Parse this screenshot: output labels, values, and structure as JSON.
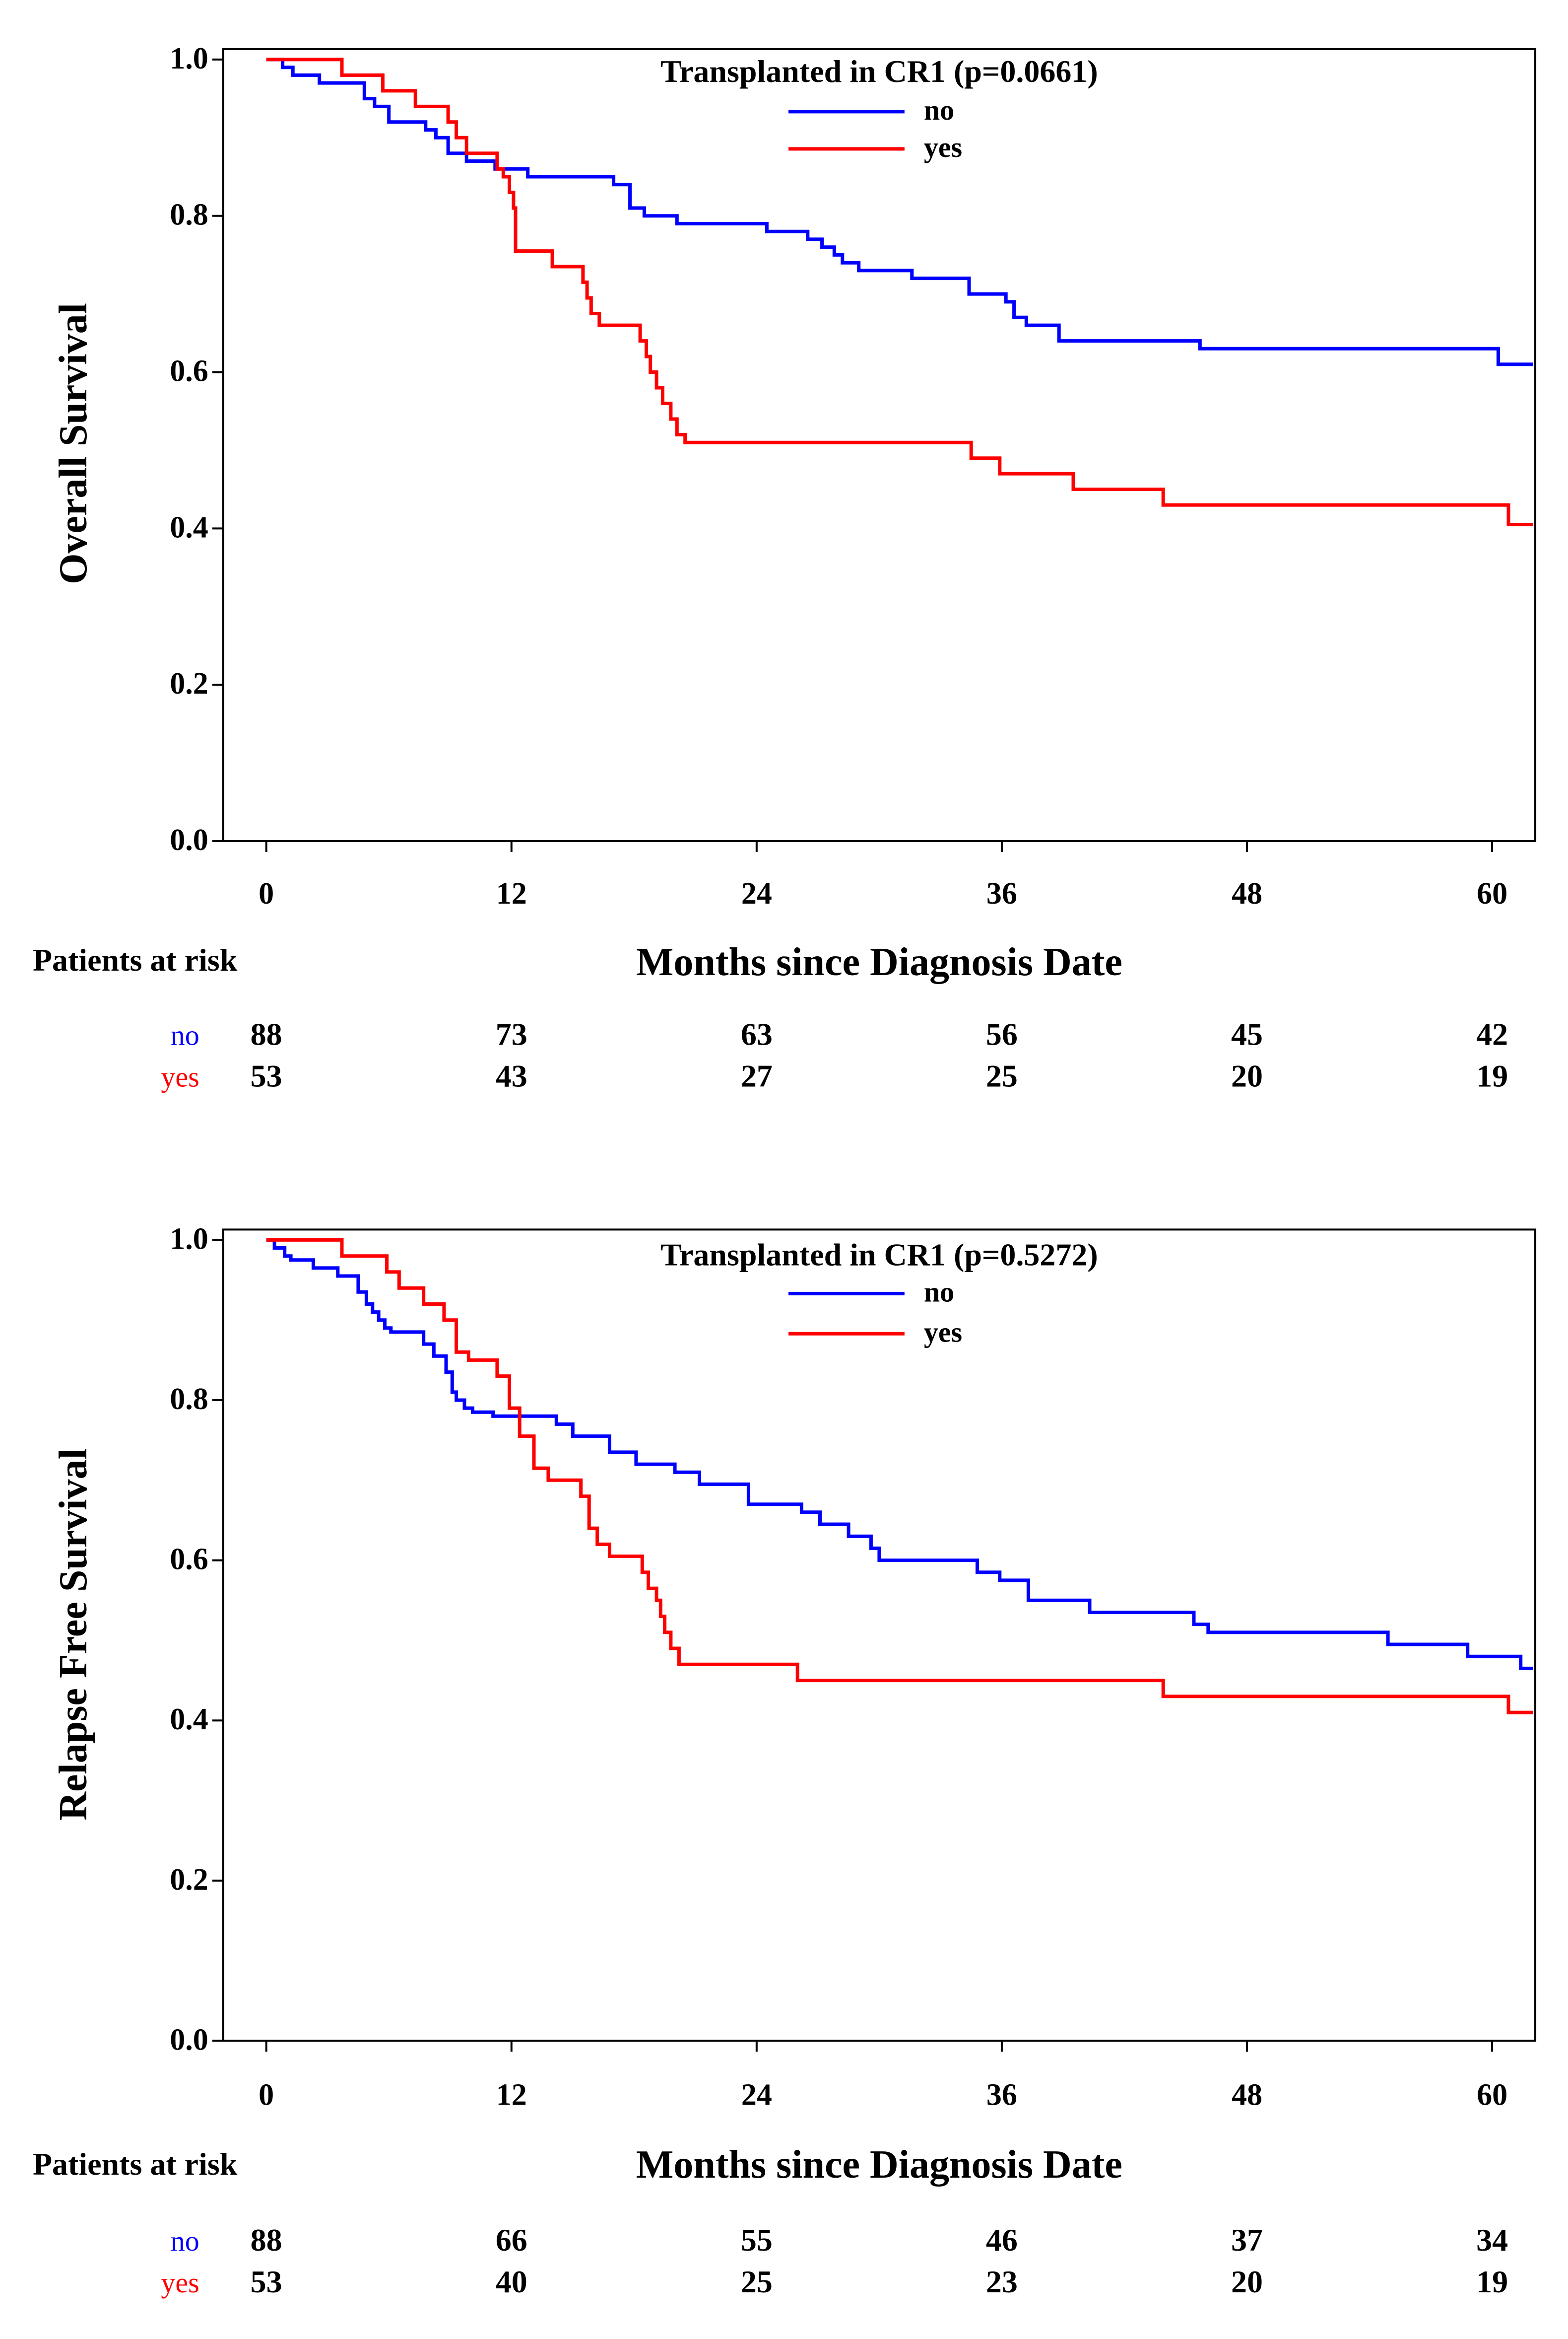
{
  "colors": {
    "no": "#0000ff",
    "yes": "#ff0000",
    "axis": "#000000"
  },
  "chart_data": [
    {
      "type": "line",
      "step": true,
      "title": "Transplanted in CR1  (p=0.0661)",
      "xlabel": "Months since Diagnosis Date",
      "ylabel": "Overall Survival",
      "xlim": [
        -2,
        62
      ],
      "ylim": [
        0,
        1
      ],
      "xticks": [
        0,
        12,
        24,
        36,
        48,
        60
      ],
      "yticks": [
        0.0,
        0.2,
        0.4,
        0.6,
        0.8,
        1.0
      ],
      "ytick_labels": [
        "0.0",
        "0.2",
        "0.4",
        "0.6",
        "0.8",
        "1.0"
      ],
      "legend": {
        "position": "top-center",
        "entries": [
          "no",
          "yes"
        ]
      },
      "series": [
        {
          "name": "no",
          "color": "#0000ff",
          "x": [
            0,
            0.8,
            1.3,
            2.6,
            4.8,
            5.3,
            6.0,
            7.8,
            8.3,
            8.9,
            9.8,
            11.2,
            12.8,
            17.0,
            17.8,
            18.5,
            20.1,
            24.5,
            26.5,
            27.2,
            27.8,
            28.2,
            29.0,
            31.6,
            34.4,
            36.2,
            36.6,
            37.2,
            38.8,
            45.7,
            60.3
          ],
          "y": [
            1.0,
            0.99,
            0.98,
            0.97,
            0.95,
            0.94,
            0.92,
            0.91,
            0.9,
            0.88,
            0.87,
            0.86,
            0.85,
            0.84,
            0.81,
            0.8,
            0.79,
            0.78,
            0.77,
            0.76,
            0.75,
            0.74,
            0.73,
            0.72,
            0.7,
            0.69,
            0.67,
            0.66,
            0.64,
            0.63,
            0.61
          ],
          "x_end": 62
        },
        {
          "name": "yes",
          "color": "#ff0000",
          "x": [
            0,
            3.7,
            5.7,
            7.3,
            8.9,
            9.3,
            9.8,
            11.3,
            11.6,
            11.9,
            12.1,
            12.2,
            14.0,
            15.5,
            15.7,
            15.9,
            16.3,
            18.3,
            18.6,
            18.8,
            19.1,
            19.4,
            19.8,
            20.1,
            20.5,
            34.5,
            35.9,
            39.5,
            43.9,
            60.8
          ],
          "y": [
            1.0,
            0.98,
            0.96,
            0.94,
            0.92,
            0.9,
            0.88,
            0.86,
            0.85,
            0.83,
            0.81,
            0.755,
            0.735,
            0.715,
            0.695,
            0.675,
            0.66,
            0.64,
            0.62,
            0.6,
            0.58,
            0.56,
            0.54,
            0.52,
            0.51,
            0.49,
            0.47,
            0.45,
            0.43,
            0.405
          ],
          "x_end": 62
        }
      ],
      "risk_table": {
        "title": "Patients at risk",
        "times": [
          0,
          12,
          24,
          36,
          48,
          60
        ],
        "rows": [
          {
            "label": "no",
            "counts": [
              88,
              73,
              63,
              56,
              45,
              42
            ]
          },
          {
            "label": "yes",
            "counts": [
              53,
              43,
              27,
              25,
              20,
              19
            ]
          }
        ]
      }
    },
    {
      "type": "line",
      "step": true,
      "title": "Transplanted in CR1  (p=0.5272)",
      "xlabel": "Months since Diagnosis Date",
      "ylabel": "Relapse Free Survival",
      "xlim": [
        -2,
        62
      ],
      "ylim": [
        0,
        1
      ],
      "xticks": [
        0,
        12,
        24,
        36,
        48,
        60
      ],
      "yticks": [
        0.0,
        0.2,
        0.4,
        0.6,
        0.8,
        1.0
      ],
      "ytick_labels": [
        "0.0",
        "0.2",
        "0.4",
        "0.6",
        "0.8",
        "1.0"
      ],
      "legend": {
        "position": "top-center",
        "entries": [
          "no",
          "yes"
        ]
      },
      "series": [
        {
          "name": "no",
          "color": "#0000ff",
          "x": [
            0,
            0.4,
            0.9,
            1.2,
            2.3,
            3.5,
            4.5,
            4.9,
            5.2,
            5.5,
            5.8,
            6.1,
            7.7,
            8.2,
            8.8,
            9.1,
            9.3,
            9.7,
            10.1,
            11.1,
            14.2,
            15.0,
            16.8,
            18.1,
            20.0,
            21.2,
            23.6,
            26.2,
            27.1,
            28.5,
            29.6,
            30.0,
            30.3,
            34.8,
            35.9,
            37.3,
            40.3,
            45.4,
            46.1,
            54.9,
            58.8,
            61.4
          ],
          "y": [
            1.0,
            0.99,
            0.98,
            0.975,
            0.965,
            0.955,
            0.935,
            0.92,
            0.91,
            0.9,
            0.89,
            0.885,
            0.87,
            0.855,
            0.835,
            0.81,
            0.8,
            0.79,
            0.785,
            0.78,
            0.77,
            0.755,
            0.735,
            0.72,
            0.71,
            0.695,
            0.67,
            0.66,
            0.645,
            0.63,
            0.615,
            0.6,
            0.6,
            0.585,
            0.575,
            0.55,
            0.535,
            0.52,
            0.51,
            0.495,
            0.48,
            0.465
          ],
          "x_end": 62
        },
        {
          "name": "yes",
          "color": "#ff0000",
          "x": [
            0,
            3.7,
            5.9,
            6.5,
            7.7,
            8.7,
            9.3,
            9.9,
            11.3,
            11.9,
            12.4,
            13.1,
            13.8,
            15.4,
            15.8,
            16.2,
            16.8,
            18.4,
            18.7,
            19.1,
            19.3,
            19.5,
            19.8,
            20.2,
            26.0,
            43.9,
            60.8
          ],
          "y": [
            1.0,
            0.98,
            0.96,
            0.94,
            0.92,
            0.9,
            0.86,
            0.85,
            0.83,
            0.79,
            0.755,
            0.715,
            0.7,
            0.68,
            0.64,
            0.62,
            0.605,
            0.585,
            0.565,
            0.55,
            0.53,
            0.51,
            0.49,
            0.47,
            0.45,
            0.43,
            0.41
          ],
          "x_end": 62
        }
      ],
      "risk_table": {
        "title": "Patients at risk",
        "times": [
          0,
          12,
          24,
          36,
          48,
          60
        ],
        "rows": [
          {
            "label": "no",
            "counts": [
              88,
              66,
              55,
              46,
              37,
              34
            ]
          },
          {
            "label": "yes",
            "counts": [
              53,
              40,
              25,
              23,
              20,
              19
            ]
          }
        ]
      }
    }
  ]
}
